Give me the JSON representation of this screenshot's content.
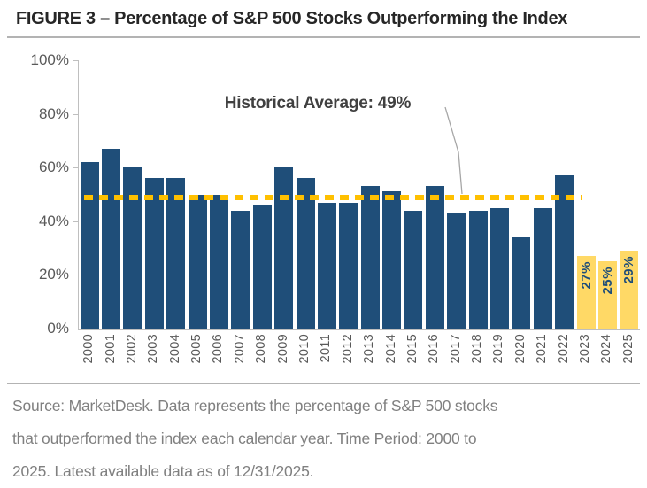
{
  "title": "FIGURE 3 – Percentage of S&P 500 Stocks Outperforming the Index",
  "chart_data": {
    "type": "bar",
    "title": "FIGURE 3 – Percentage of S&P 500 Stocks Outperforming the Index",
    "categories": [
      "2000",
      "2001",
      "2002",
      "2003",
      "2004",
      "2005",
      "2006",
      "2007",
      "2008",
      "2009",
      "2010",
      "2011",
      "2012",
      "2013",
      "2014",
      "2015",
      "2016",
      "2017",
      "2018",
      "2019",
      "2020",
      "2021",
      "2022",
      "2023",
      "2024",
      "2025"
    ],
    "values": [
      62,
      67,
      60,
      56,
      56,
      50,
      50,
      44,
      46,
      60,
      56,
      47,
      47,
      53,
      51,
      44,
      53,
      43,
      44,
      45,
      34,
      45,
      57,
      27,
      25,
      29
    ],
    "bar_labels": [
      "",
      "",
      "",
      "",
      "",
      "",
      "",
      "",
      "",
      "",
      "",
      "",
      "",
      "",
      "",
      "",
      "",
      "",
      "",
      "",
      "",
      "",
      "",
      "27%",
      "25%",
      "29%"
    ],
    "highlight_from_index": 23,
    "annotation": {
      "text": "Historical Average: 49%",
      "value": 49
    },
    "xlabel": "",
    "ylabel": "",
    "ylim": [
      0,
      100
    ],
    "yticks": [
      {
        "value": 0,
        "label": "0%"
      },
      {
        "value": 20,
        "label": "20%"
      },
      {
        "value": 40,
        "label": "40%"
      },
      {
        "value": 60,
        "label": "60%"
      },
      {
        "value": 80,
        "label": "80%"
      },
      {
        "value": 100,
        "label": "100%"
      }
    ],
    "grid": "off",
    "legend": "none",
    "colors": {
      "bar": "#1f4e79",
      "highlight_bar": "#ffd966",
      "average_line": "#ffc000",
      "bar_label_text": "#1f4e79",
      "axis": "#bfbfbf",
      "tick_text": "#595959"
    }
  },
  "footer": {
    "lines": [
      "Source: MarketDesk. Data represents the percentage of S&P 500 stocks",
      "that outperformed the index each calendar year. Time Period: 2000 to",
      "2025. Latest available data as of 12/31/2025."
    ]
  }
}
